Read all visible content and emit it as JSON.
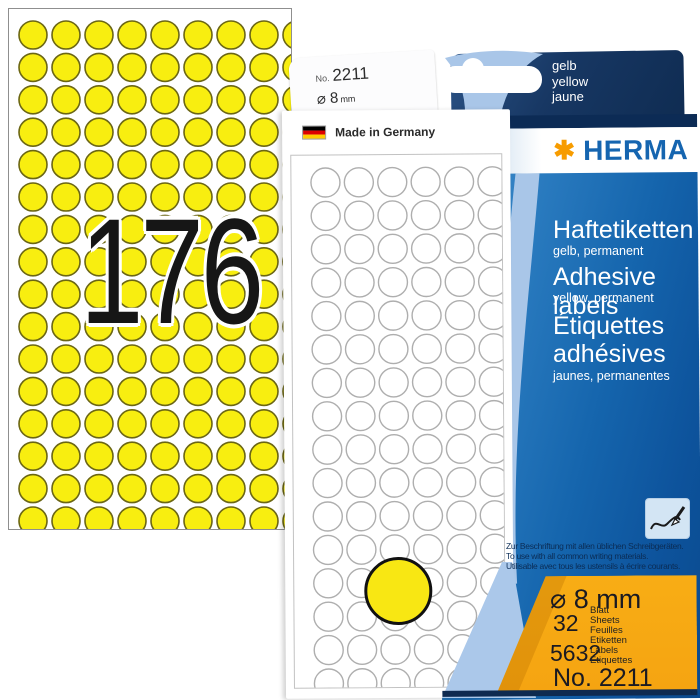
{
  "overlay": {
    "label_count": "176"
  },
  "tab": {
    "no_label": "No.",
    "no_value": "2211",
    "diameter": "⌀ 8",
    "diameter_unit": "mm"
  },
  "origin": {
    "label": "Made in Germany"
  },
  "flap": {
    "colors": [
      "gelb",
      "yellow",
      "jaune"
    ]
  },
  "brand": {
    "asterisk": "✱",
    "name": "HERMA"
  },
  "sections": [
    {
      "title": "Haftetiketten",
      "subtitle": "gelb, permanent"
    },
    {
      "title": "Adhesive labels",
      "subtitle": "yellow, permanent"
    },
    {
      "title_line1": "Étiquettes",
      "title_line2": "adhésives",
      "subtitle": "jaunes, permanentes"
    }
  ],
  "usage_note": [
    "Zur Beschriftung mit allen üblichen Schreibgeräten.",
    "To use with all common writing materials.",
    "Utilisable avec tous les ustensils à écrire courants."
  ],
  "specs": {
    "diameter": "⌀ 8 mm",
    "sheets_value": "32",
    "sheets_units": [
      "Blatt",
      "Sheets",
      "Feuilles"
    ],
    "labels_value": "5632",
    "labels_units": [
      "Etiketten",
      "Labels",
      "Etiquettes"
    ],
    "item_no": "No. 2211"
  },
  "grids": {
    "sheet": {
      "cols": 9,
      "rows": 16
    },
    "booklet": {
      "cols": 7,
      "rows": 16
    }
  },
  "colors": {
    "label_yellow": "#f8ee10",
    "label_yellow_stroke": "#6b6614",
    "booklet_circle_stroke": "#aeaeae",
    "pale_blue": "#a9c6e8",
    "flap_navy": "#16365f",
    "body_blue": "#1565ad",
    "brand_blue": "#1565b0",
    "brand_orange": "#f79c00",
    "panel_orange": "#f6a912",
    "flag_black": "#000000",
    "flag_red": "#dd0000",
    "flag_gold": "#ffcc00"
  }
}
